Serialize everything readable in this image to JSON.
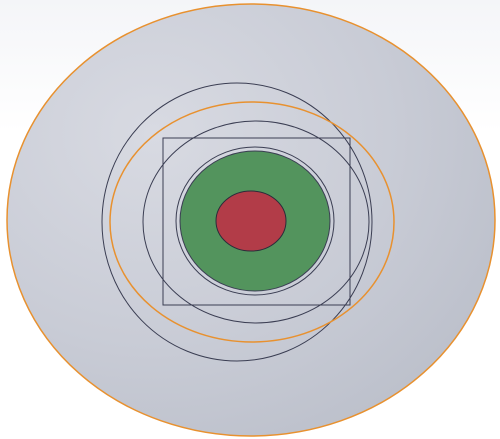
{
  "scene": {
    "colors": {
      "background_top": "#f4f5f8",
      "disc_fill": "#c9ccd6",
      "disc_edge": "#e8912f",
      "sketch_line": "#3a3d52",
      "orange_ring": "#e8912f",
      "green_fill": "#53945d",
      "red_fill": "#b23c48"
    },
    "entities": [
      "outer-disc",
      "black-ring-outer",
      "orange-ring",
      "black-ring-inner",
      "square-sketch",
      "green-region",
      "red-region"
    ]
  }
}
